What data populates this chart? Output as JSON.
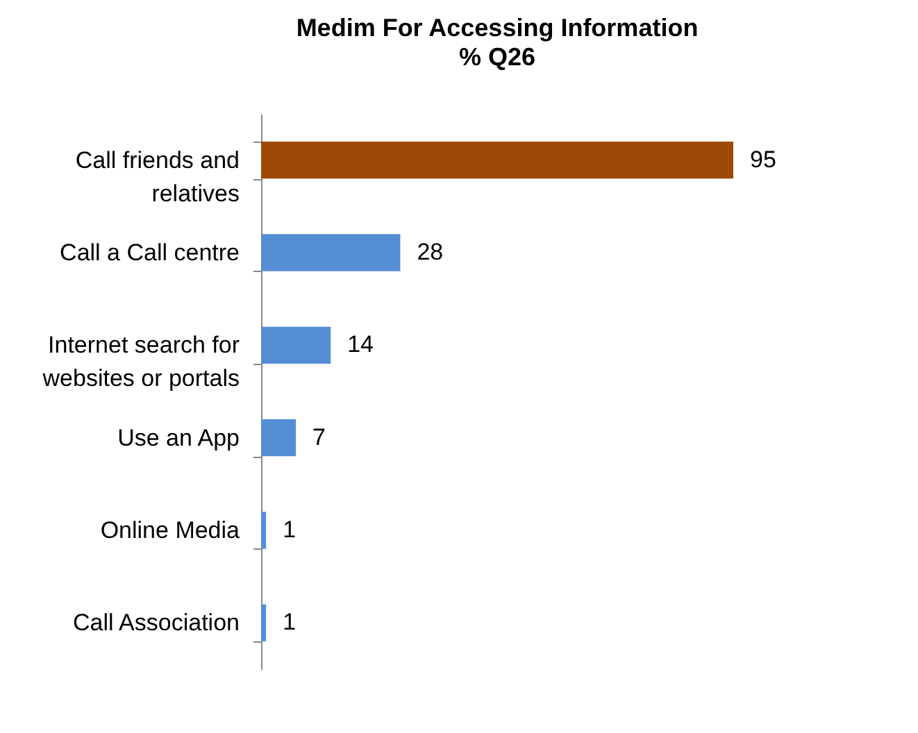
{
  "chart_data": {
    "type": "bar",
    "orientation": "horizontal",
    "title": "Medim For Accessing Information",
    "subtitle": "% Q26",
    "categories": [
      "Call friends and relatives",
      "Call a Call centre",
      "Internet search for websites or portals",
      "Use an App",
      "Online Media",
      "Call Association"
    ],
    "values": [
      95,
      28,
      14,
      7,
      1,
      1
    ],
    "colors": [
      "#9c4a06",
      "#558ed5",
      "#558ed5",
      "#558ed5",
      "#558ed5",
      "#558ed5"
    ],
    "data_labels": true
  }
}
